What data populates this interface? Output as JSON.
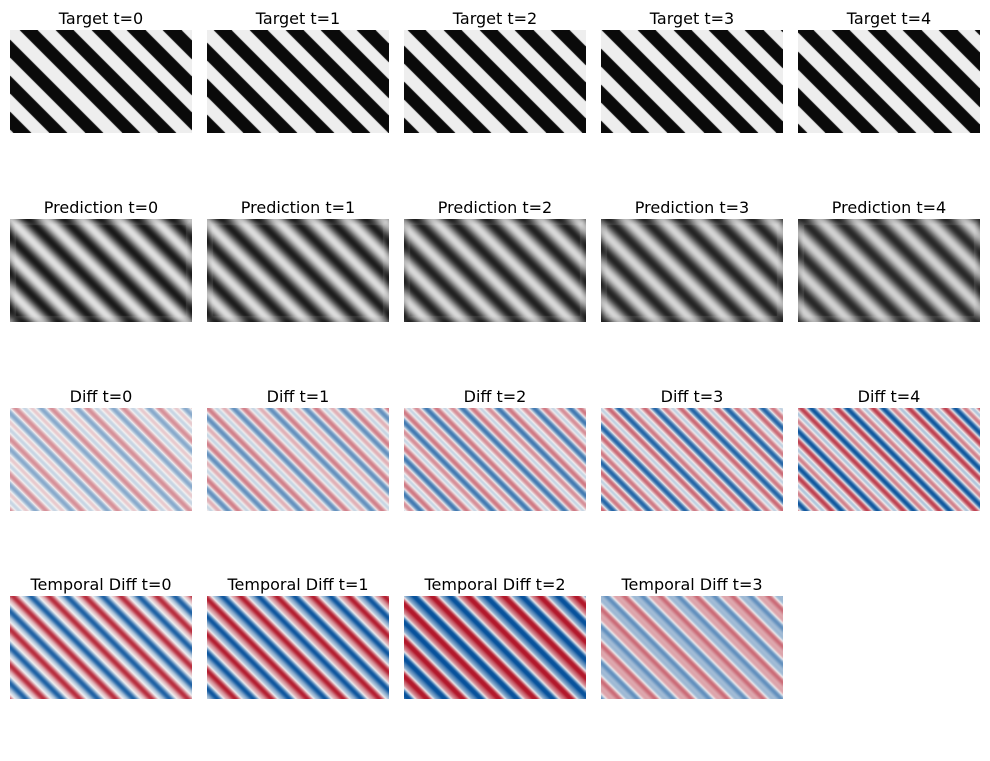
{
  "rows": [
    {
      "name": "target",
      "panels": [
        {
          "title": "Target t=0",
          "kind": "target",
          "t": 0
        },
        {
          "title": "Target t=1",
          "kind": "target",
          "t": 1
        },
        {
          "title": "Target t=2",
          "kind": "target",
          "t": 2
        },
        {
          "title": "Target t=3",
          "kind": "target",
          "t": 3
        },
        {
          "title": "Target t=4",
          "kind": "target",
          "t": 4
        }
      ]
    },
    {
      "name": "prediction",
      "panels": [
        {
          "title": "Prediction t=0",
          "kind": "prediction",
          "t": 0
        },
        {
          "title": "Prediction t=1",
          "kind": "prediction",
          "t": 1
        },
        {
          "title": "Prediction t=2",
          "kind": "prediction",
          "t": 2
        },
        {
          "title": "Prediction t=3",
          "kind": "prediction",
          "t": 3
        },
        {
          "title": "Prediction t=4",
          "kind": "prediction",
          "t": 4
        }
      ]
    },
    {
      "name": "diff",
      "panels": [
        {
          "title": "Diff t=0",
          "kind": "diff",
          "t": 0
        },
        {
          "title": "Diff t=1",
          "kind": "diff",
          "t": 1
        },
        {
          "title": "Diff t=2",
          "kind": "diff",
          "t": 2
        },
        {
          "title": "Diff t=3",
          "kind": "diff",
          "t": 3
        },
        {
          "title": "Diff t=4",
          "kind": "diff",
          "t": 4
        }
      ]
    },
    {
      "name": "temporal-diff",
      "panels": [
        {
          "title": "Temporal Diff t=0",
          "kind": "temporal",
          "t": 0
        },
        {
          "title": "Temporal Diff t=1",
          "kind": "temporal",
          "t": 1
        },
        {
          "title": "Temporal Diff t=2",
          "kind": "temporal",
          "t": 2
        },
        {
          "title": "Temporal Diff t=3",
          "kind": "temporal",
          "t": 3
        }
      ]
    }
  ],
  "colors": {
    "stripe_dark": "#0a0a0a",
    "stripe_light": "#eeeeee",
    "diverging_negative": "#08529c",
    "diverging_neutral": "#f5f5f5",
    "diverging_positive": "#b2182b"
  },
  "colormaps": {
    "target": "gray",
    "prediction": "gray",
    "diff": "RdBu",
    "temporal": "RdBu"
  }
}
